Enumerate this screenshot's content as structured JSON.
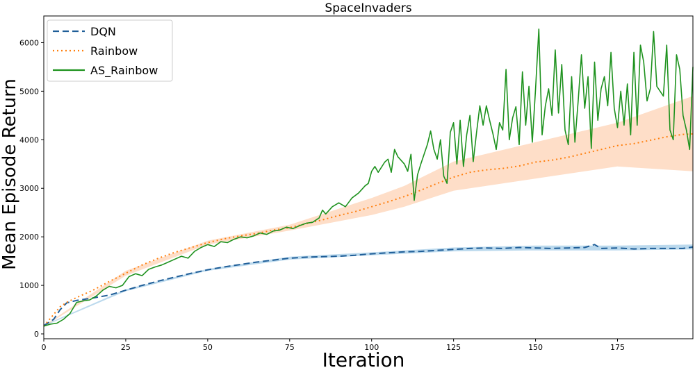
{
  "chart_data": {
    "type": "line",
    "title": "SpaceInvaders",
    "xlabel": "Iteration",
    "ylabel": "Mean Episode Return",
    "xlim": [
      0,
      198
    ],
    "ylim": [
      -100,
      6550
    ],
    "xticks": [
      0,
      25,
      50,
      75,
      100,
      125,
      150,
      175
    ],
    "yticks": [
      0,
      1000,
      2000,
      3000,
      4000,
      5000,
      6000
    ],
    "grid": false,
    "legend_position": "top-left",
    "series": [
      {
        "name": "DQN",
        "color": "#1f5e98",
        "band_color": "#9ec9e6",
        "style": "dashed",
        "points": [
          [
            0,
            170
          ],
          [
            3,
            300
          ],
          [
            5,
            500
          ],
          [
            7,
            640
          ],
          [
            10,
            690
          ],
          [
            15,
            740
          ],
          [
            20,
            800
          ],
          [
            25,
            900
          ],
          [
            30,
            1000
          ],
          [
            35,
            1090
          ],
          [
            40,
            1170
          ],
          [
            45,
            1250
          ],
          [
            50,
            1320
          ],
          [
            55,
            1380
          ],
          [
            60,
            1430
          ],
          [
            65,
            1480
          ],
          [
            70,
            1520
          ],
          [
            75,
            1560
          ],
          [
            80,
            1580
          ],
          [
            85,
            1590
          ],
          [
            90,
            1600
          ],
          [
            95,
            1620
          ],
          [
            100,
            1650
          ],
          [
            105,
            1670
          ],
          [
            110,
            1690
          ],
          [
            115,
            1700
          ],
          [
            120,
            1720
          ],
          [
            125,
            1740
          ],
          [
            130,
            1760
          ],
          [
            135,
            1770
          ],
          [
            140,
            1760
          ],
          [
            145,
            1780
          ],
          [
            150,
            1770
          ],
          [
            155,
            1760
          ],
          [
            160,
            1770
          ],
          [
            165,
            1780
          ],
          [
            168,
            1840
          ],
          [
            170,
            1760
          ],
          [
            175,
            1770
          ],
          [
            180,
            1750
          ],
          [
            185,
            1760
          ],
          [
            190,
            1760
          ],
          [
            195,
            1760
          ],
          [
            198,
            1790
          ]
        ],
        "band": [
          [
            0,
            160,
            180
          ],
          [
            25,
            880,
            920
          ],
          [
            50,
            1300,
            1340
          ],
          [
            75,
            1530,
            1590
          ],
          [
            100,
            1620,
            1680
          ],
          [
            125,
            1700,
            1780
          ],
          [
            150,
            1720,
            1820
          ],
          [
            175,
            1720,
            1820
          ],
          [
            198,
            1740,
            1840
          ]
        ]
      },
      {
        "name": "Rainbow",
        "color": "#ff7f0e",
        "band_color": "#fdd0b1",
        "style": "dotted",
        "points": [
          [
            0,
            160
          ],
          [
            3,
            400
          ],
          [
            5,
            560
          ],
          [
            7,
            650
          ],
          [
            10,
            750
          ],
          [
            15,
            900
          ],
          [
            20,
            1080
          ],
          [
            25,
            1250
          ],
          [
            30,
            1420
          ],
          [
            35,
            1560
          ],
          [
            40,
            1680
          ],
          [
            45,
            1780
          ],
          [
            50,
            1880
          ],
          [
            55,
            1960
          ],
          [
            60,
            2020
          ],
          [
            65,
            2070
          ],
          [
            70,
            2140
          ],
          [
            75,
            2190
          ],
          [
            80,
            2270
          ],
          [
            85,
            2350
          ],
          [
            90,
            2440
          ],
          [
            95,
            2520
          ],
          [
            100,
            2620
          ],
          [
            105,
            2720
          ],
          [
            110,
            2830
          ],
          [
            115,
            2960
          ],
          [
            120,
            3100
          ],
          [
            125,
            3230
          ],
          [
            130,
            3330
          ],
          [
            135,
            3380
          ],
          [
            140,
            3410
          ],
          [
            145,
            3460
          ],
          [
            150,
            3540
          ],
          [
            155,
            3580
          ],
          [
            160,
            3640
          ],
          [
            165,
            3720
          ],
          [
            170,
            3800
          ],
          [
            175,
            3880
          ],
          [
            180,
            3920
          ],
          [
            185,
            3990
          ],
          [
            190,
            4060
          ],
          [
            195,
            4110
          ],
          [
            198,
            4120
          ]
        ],
        "band": [
          [
            0,
            150,
            170
          ],
          [
            25,
            1200,
            1300
          ],
          [
            50,
            1840,
            1920
          ],
          [
            75,
            2130,
            2250
          ],
          [
            100,
            2450,
            2800
          ],
          [
            110,
            2620,
            3050
          ],
          [
            125,
            2950,
            3550
          ],
          [
            150,
            3200,
            3950
          ],
          [
            175,
            3450,
            4350
          ],
          [
            198,
            3350,
            4900
          ]
        ]
      },
      {
        "name": "AS_Rainbow",
        "color": "#1e921e",
        "style": "solid",
        "points": [
          [
            0,
            160
          ],
          [
            2,
            200
          ],
          [
            4,
            220
          ],
          [
            6,
            300
          ],
          [
            8,
            420
          ],
          [
            10,
            650
          ],
          [
            12,
            680
          ],
          [
            14,
            700
          ],
          [
            16,
            780
          ],
          [
            18,
            900
          ],
          [
            20,
            980
          ],
          [
            22,
            950
          ],
          [
            24,
            1000
          ],
          [
            26,
            1180
          ],
          [
            28,
            1240
          ],
          [
            30,
            1200
          ],
          [
            32,
            1330
          ],
          [
            34,
            1380
          ],
          [
            36,
            1420
          ],
          [
            38,
            1480
          ],
          [
            40,
            1540
          ],
          [
            42,
            1600
          ],
          [
            44,
            1560
          ],
          [
            46,
            1700
          ],
          [
            48,
            1780
          ],
          [
            50,
            1840
          ],
          [
            52,
            1800
          ],
          [
            54,
            1900
          ],
          [
            56,
            1880
          ],
          [
            58,
            1950
          ],
          [
            60,
            2000
          ],
          [
            62,
            1980
          ],
          [
            64,
            2020
          ],
          [
            66,
            2080
          ],
          [
            68,
            2050
          ],
          [
            70,
            2120
          ],
          [
            72,
            2140
          ],
          [
            74,
            2200
          ],
          [
            76,
            2170
          ],
          [
            78,
            2230
          ],
          [
            80,
            2280
          ],
          [
            82,
            2300
          ],
          [
            84,
            2390
          ],
          [
            85,
            2550
          ],
          [
            86,
            2470
          ],
          [
            88,
            2620
          ],
          [
            90,
            2700
          ],
          [
            92,
            2620
          ],
          [
            94,
            2800
          ],
          [
            96,
            2900
          ],
          [
            98,
            3050
          ],
          [
            99,
            3100
          ],
          [
            100,
            3350
          ],
          [
            101,
            3450
          ],
          [
            102,
            3330
          ],
          [
            104,
            3540
          ],
          [
            105,
            3600
          ],
          [
            106,
            3330
          ],
          [
            107,
            3800
          ],
          [
            108,
            3650
          ],
          [
            110,
            3500
          ],
          [
            111,
            3350
          ],
          [
            112,
            3700
          ],
          [
            113,
            2750
          ],
          [
            114,
            3280
          ],
          [
            115,
            3500
          ],
          [
            116,
            3700
          ],
          [
            117,
            3900
          ],
          [
            118,
            4180
          ],
          [
            119,
            3800
          ],
          [
            120,
            3600
          ],
          [
            121,
            4000
          ],
          [
            122,
            3250
          ],
          [
            123,
            3100
          ],
          [
            124,
            4150
          ],
          [
            125,
            4350
          ],
          [
            126,
            3500
          ],
          [
            127,
            4400
          ],
          [
            128,
            3450
          ],
          [
            129,
            4100
          ],
          [
            130,
            4500
          ],
          [
            131,
            3550
          ],
          [
            132,
            4150
          ],
          [
            133,
            4700
          ],
          [
            134,
            4300
          ],
          [
            135,
            4700
          ],
          [
            136,
            4400
          ],
          [
            137,
            4120
          ],
          [
            138,
            3800
          ],
          [
            139,
            4350
          ],
          [
            140,
            4200
          ],
          [
            141,
            5450
          ],
          [
            142,
            4000
          ],
          [
            143,
            4450
          ],
          [
            144,
            4680
          ],
          [
            145,
            3900
          ],
          [
            146,
            5400
          ],
          [
            147,
            4300
          ],
          [
            148,
            5100
          ],
          [
            149,
            3950
          ],
          [
            150,
            5050
          ],
          [
            151,
            6280
          ],
          [
            152,
            4100
          ],
          [
            153,
            4700
          ],
          [
            154,
            5050
          ],
          [
            155,
            4500
          ],
          [
            156,
            5850
          ],
          [
            157,
            4550
          ],
          [
            158,
            5550
          ],
          [
            159,
            4200
          ],
          [
            160,
            3900
          ],
          [
            161,
            5300
          ],
          [
            162,
            3950
          ],
          [
            163,
            4800
          ],
          [
            164,
            5750
          ],
          [
            165,
            4650
          ],
          [
            166,
            5300
          ],
          [
            167,
            3820
          ],
          [
            168,
            5600
          ],
          [
            169,
            4400
          ],
          [
            170,
            5050
          ],
          [
            171,
            5300
          ],
          [
            172,
            4700
          ],
          [
            173,
            5800
          ],
          [
            174,
            4650
          ],
          [
            175,
            4250
          ],
          [
            176,
            5000
          ],
          [
            177,
            4300
          ],
          [
            178,
            5150
          ],
          [
            179,
            4100
          ],
          [
            180,
            5800
          ],
          [
            181,
            4300
          ],
          [
            182,
            5950
          ],
          [
            183,
            5600
          ],
          [
            184,
            4800
          ],
          [
            185,
            5050
          ],
          [
            186,
            6230
          ],
          [
            187,
            5100
          ],
          [
            188,
            5000
          ],
          [
            189,
            4900
          ],
          [
            190,
            5950
          ],
          [
            191,
            4200
          ],
          [
            192,
            4000
          ],
          [
            193,
            5750
          ],
          [
            194,
            5450
          ],
          [
            195,
            4500
          ],
          [
            196,
            4200
          ],
          [
            197,
            3800
          ],
          [
            198,
            5500
          ]
        ]
      }
    ]
  }
}
